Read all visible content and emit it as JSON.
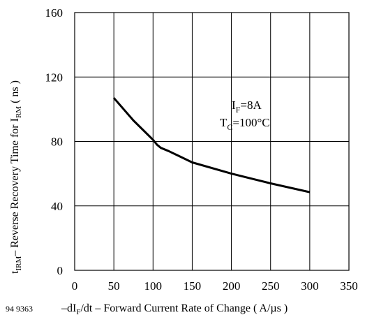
{
  "figure_id": "94 9363",
  "chart_data": {
    "type": "line",
    "title": "",
    "xlabel": {
      "prefix": "–dI",
      "sub": "F",
      "suffix": "/dt – Forward Current Rate of Change ( A/µs )"
    },
    "ylabel": {
      "prefix": "t",
      "sub1": "IRM",
      "middle": "– Reverse Recovery Time for I",
      "sub2": "RM",
      "suffix": "( ns )"
    },
    "xlim": [
      0,
      350
    ],
    "ylim": [
      0,
      160
    ],
    "x_ticks": [
      0,
      50,
      100,
      150,
      200,
      250,
      300,
      350
    ],
    "y_ticks": [
      0,
      40,
      80,
      120,
      160
    ],
    "grid": true,
    "series": [
      {
        "x": [
          50,
          75,
          100,
          105,
          110,
          120,
          150,
          200,
          250,
          300
        ],
        "y": [
          107,
          93,
          81,
          78,
          76,
          74,
          67,
          60,
          54,
          48.5
        ]
      }
    ],
    "annotations": [
      {
        "main": "I",
        "sub": "F",
        "rest": "=8A"
      },
      {
        "main": "T",
        "sub": "C",
        "rest": "=100°C"
      }
    ]
  }
}
